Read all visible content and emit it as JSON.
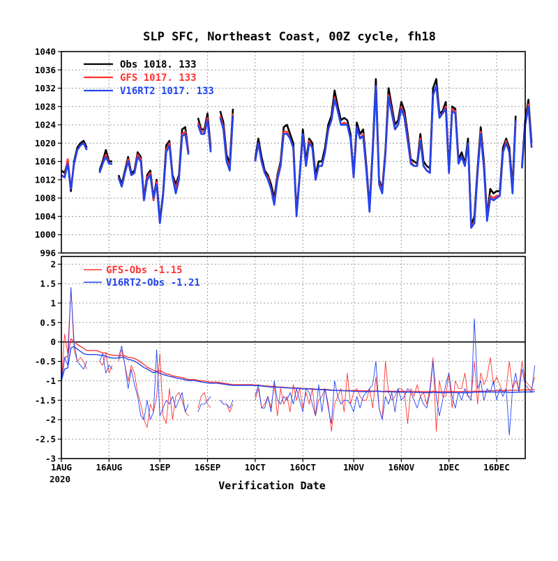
{
  "title": "SLP SFC, Northeast Coast, 00Z cycle, fh18",
  "colors": {
    "obs": "#000000",
    "gfs": "#ff3333",
    "v16": "#2244ee",
    "grid": "#999999"
  },
  "chart_data": [
    {
      "type": "line",
      "panel": "top",
      "ylim": [
        996,
        1040
      ],
      "yticks": [
        "1040",
        "1036",
        "1032",
        "1028",
        "1024",
        "1020",
        "1016",
        "1012",
        "1008",
        "1004",
        "1000",
        "996"
      ],
      "grid": true,
      "legend_position": "top-left",
      "legend": [
        {
          "key": "obs",
          "label": "Obs",
          "mean": "1018.",
          "count": "133"
        },
        {
          "key": "gfs",
          "label": "GFS",
          "mean": "1017.",
          "count": "133"
        },
        {
          "key": "v16",
          "label": "V16RT2",
          "mean": "1017.",
          "count": "133"
        }
      ],
      "x_start": "2020-08-01",
      "series": [
        {
          "name": "Obs",
          "key": "obs",
          "values": [
            1014,
            1013.5,
            1016,
            1009.5,
            1016,
            1019,
            1020,
            1020.5,
            1019,
            null,
            null,
            null,
            1014,
            1016,
            1018.5,
            1016,
            1016,
            null,
            1013,
            1011,
            1014,
            1017,
            1013.5,
            1014,
            1018,
            1017,
            1008,
            1013,
            1014,
            1008,
            1012,
            1003,
            1009,
            1019.5,
            1020.5,
            1013,
            1011,
            1013,
            1023,
            1023.5,
            1018,
            null,
            null,
            1025.5,
            1023,
            1023,
            1026.5,
            1019,
            null,
            null,
            1027,
            1024.5,
            1017.5,
            1015.5,
            1027.5,
            null,
            null,
            null,
            null,
            null,
            null,
            1016.5,
            1021,
            1017,
            1014,
            1013,
            1011,
            1008,
            1013,
            1016,
            1023.5,
            1024,
            1022,
            1020,
            1005,
            1013,
            1023,
            1016,
            1021,
            1020,
            1013,
            1016,
            1016,
            1019,
            1024,
            1026,
            1031.5,
            1028,
            1025,
            1025.5,
            1025,
            1022,
            1013,
            1024.5,
            1022,
            1023,
            1015,
            1006,
            1019,
            1034,
            1012,
            1010,
            1018.5,
            1032,
            1028,
            1024,
            1025,
            1029,
            1027,
            1022,
            1016.5,
            1016,
            1015.5,
            1022,
            1016,
            1015,
            1014.5,
            1032,
            1034,
            1026.5,
            1027,
            1029,
            1014,
            1028,
            1027.5,
            1016.5,
            1018,
            1015.5,
            1021,
            1002,
            1004,
            1014.5,
            1023.5,
            1016,
            1004,
            1010,
            1009,
            1009.5,
            1009.5,
            1019,
            1021,
            1019,
            1010.5,
            1026,
            null,
            1015,
            1025,
            1029.5,
            1020
          ]
        },
        {
          "name": "GFS",
          "key": "gfs",
          "values": [
            1013,
            1012.5,
            1016.5,
            1010,
            1015.5,
            1018.5,
            1019.5,
            1020,
            1018.5,
            null,
            null,
            null,
            1013.5,
            1015.5,
            1017.5,
            1015.5,
            1015.5,
            null,
            1012.5,
            1010.5,
            1013.5,
            1016.5,
            1013,
            1013.5,
            1017.5,
            1016.5,
            1007.5,
            1012.5,
            1013.5,
            1007.5,
            1011.5,
            1002.5,
            1008.5,
            1018.5,
            1020,
            1012.5,
            1010,
            1012.5,
            1022,
            1022.5,
            1018,
            null,
            null,
            1024.5,
            1022.5,
            1022.5,
            1025.5,
            1018.5,
            null,
            null,
            1026,
            1023.5,
            1016.5,
            1014.5,
            1026.5,
            null,
            null,
            null,
            null,
            null,
            null,
            1016,
            1020,
            1016,
            1013.5,
            1012.5,
            1010,
            1007,
            1012.5,
            1015.5,
            1022.5,
            1022.5,
            1021,
            1019,
            1004.5,
            1012.5,
            1022,
            1015,
            1020.5,
            1019,
            1012,
            1015,
            1015,
            1018,
            1023,
            1025,
            1030,
            1027,
            1024,
            1024.5,
            1024,
            1021,
            1012.5,
            1023.5,
            1021,
            1022,
            1014,
            1005.5,
            1018,
            1032.5,
            1011.5,
            1009.5,
            1018,
            1030.5,
            1027,
            1023,
            1024,
            1028,
            1026,
            1021,
            1016,
            1015,
            1015,
            1021,
            1015,
            1014,
            1013.5,
            1030.5,
            1032.5,
            1026,
            1026.5,
            1028,
            1013.5,
            1027.5,
            1027,
            1016,
            1017,
            1015,
            1020,
            1001.5,
            1003,
            1013.5,
            1022.5,
            1015,
            1003.5,
            1008.5,
            1008,
            1008.5,
            1008.5,
            1018,
            1020.5,
            1018,
            1009.5,
            1025,
            null,
            1014.5,
            1024,
            1028.5,
            1019
          ]
        },
        {
          "name": "V16RT2",
          "key": "v16",
          "values": [
            1013,
            1012.5,
            1015.5,
            1010,
            1015.5,
            1018.5,
            1019.5,
            1020,
            1018.5,
            null,
            null,
            null,
            1013.5,
            1015.5,
            1017,
            1015.5,
            1015.5,
            null,
            1012.5,
            1010.5,
            1013.5,
            1016,
            1013,
            1013.5,
            1017,
            1016,
            1007.5,
            1012,
            1013,
            1008,
            1011,
            1002.5,
            1008.5,
            1018,
            1019.5,
            1012.5,
            1009,
            1012,
            1021.5,
            1022,
            1017.5,
            null,
            null,
            1024,
            1022,
            1022,
            1025,
            1018,
            null,
            null,
            1025.5,
            1023,
            1016,
            1014,
            1026,
            null,
            null,
            null,
            null,
            null,
            null,
            1016,
            1020,
            1016,
            1013.5,
            1012,
            1010,
            1006.5,
            1012,
            1015,
            1022,
            1022,
            1021,
            1019,
            1004,
            1012.5,
            1022,
            1015,
            1020,
            1019,
            1012,
            1015,
            1015,
            1018,
            1023,
            1025,
            1029.5,
            1027,
            1024,
            1024,
            1024,
            1021,
            1012.5,
            1023.5,
            1021,
            1021.5,
            1014,
            1005,
            1018,
            1032.5,
            1011,
            1009,
            1017.5,
            1030,
            1026.5,
            1023,
            1024,
            1027.5,
            1025.5,
            1020.5,
            1015.5,
            1015,
            1015,
            1020.5,
            1015,
            1014,
            1013.5,
            1030.5,
            1032.5,
            1025.5,
            1026.5,
            1027.5,
            1013.5,
            1027,
            1026.5,
            1015.5,
            1017,
            1015,
            1020,
            1001.5,
            1002.5,
            1013.5,
            1022,
            1014.5,
            1003,
            1008,
            1007.5,
            1008,
            1008.5,
            1018,
            1020,
            1018,
            1009,
            1025,
            null,
            1014.5,
            1024,
            1028,
            1019
          ]
        }
      ]
    },
    {
      "type": "line",
      "panel": "bottom",
      "ylim": [
        -3,
        2.2
      ],
      "yticks": [
        "2",
        "1.5",
        "1",
        "0.5",
        "0",
        "-0.5",
        "-1",
        "-1.5",
        "-2",
        "-2.5",
        "-3"
      ],
      "grid": true,
      "legend_position": "top-left",
      "legend": [
        {
          "key": "gfs",
          "label": "GFS-Obs",
          "mean": "-1.15"
        },
        {
          "key": "v16",
          "label": "V16RT2-Obs",
          "mean": "-1.21"
        }
      ],
      "x_start": "2020-08-01",
      "series": [
        {
          "name": "GFS-Obs",
          "key": "gfs",
          "values": [
            -1,
            0.2,
            -0.3,
            1.4,
            -0.2,
            -0.5,
            -0.4,
            -0.5,
            -0.7,
            null,
            null,
            null,
            -0.5,
            -0.6,
            -0.3,
            -0.8,
            -0.6,
            null,
            -0.5,
            -0.2,
            -0.6,
            -1,
            -0.6,
            -0.8,
            -1.3,
            -1.6,
            -2,
            -2.2,
            -1.6,
            -1.8,
            -1.4,
            -0.3,
            -1.9,
            -2.1,
            -1.2,
            -2,
            -1.4,
            -1.3,
            -1.5,
            -1.8,
            -1.9,
            null,
            null,
            -1.7,
            -1.4,
            -1.3,
            -1.6,
            -1.7,
            null,
            null,
            -1.5,
            -1.6,
            -1.6,
            -1.8,
            -1.6,
            null,
            null,
            null,
            null,
            null,
            null,
            -1.5,
            -1.2,
            -1.7,
            -1.6,
            -1.4,
            -1.7,
            -1.1,
            -1.9,
            -1.2,
            -1.6,
            -1.4,
            -1.8,
            -1.1,
            -1.5,
            -1.2,
            -1.7,
            -1.3,
            -1.6,
            -1.2,
            -1.9,
            -1.5,
            -1.4,
            -1.2,
            -1.6,
            -2.3,
            -1.6,
            -1.4,
            -1.2,
            -1.8,
            -0.8,
            -1.6,
            -1.3,
            -1.2,
            -1.4,
            -1.5,
            -1.5,
            -1.2,
            -1.7,
            -0.9,
            -1.7,
            -2,
            -0.5,
            -1.3,
            -1.5,
            -1.4,
            -1.2,
            -1.2,
            -1.3,
            -2.1,
            -1.2,
            -1.4,
            -1.1,
            -1.4,
            -1.3,
            -1.6,
            -1.2,
            -0.4,
            -2.3,
            -1,
            -1.4,
            -1.4,
            -0.8,
            -1.7,
            -1,
            -1.2,
            -1.2,
            -0.8,
            -1.4,
            -1.4,
            -0.5,
            -1.6,
            -0.8,
            -1.1,
            -0.9,
            -0.4,
            -1.1,
            -0.9,
            -1.1,
            -1.3,
            -1.2,
            -0.5,
            -1.2,
            -1,
            -1.2,
            -0.5,
            -1,
            -1.1,
            -1.2,
            -0.9
          ]
        },
        {
          "name": "V16RT2-Obs",
          "key": "v16",
          "values": [
            -1,
            -0.4,
            -0.6,
            1.4,
            0,
            -0.5,
            -0.6,
            -0.7,
            -0.5,
            null,
            null,
            null,
            -0.5,
            -0.3,
            -0.8,
            -0.6,
            -0.7,
            null,
            -0.4,
            -0.1,
            -0.6,
            -1.2,
            -0.7,
            -1.1,
            -1.4,
            -1.9,
            -2,
            -1.5,
            -2,
            -1.8,
            -0.2,
            -1.9,
            -1.7,
            -1.5,
            -1.6,
            -1.4,
            -1.7,
            -1.5,
            -1.3,
            -1.8,
            -1.6,
            null,
            null,
            -1.8,
            -1.6,
            -1.6,
            -1.5,
            -1.4,
            null,
            null,
            -1.5,
            -1.6,
            -1.6,
            -1.7,
            -1.5,
            null,
            null,
            null,
            null,
            null,
            null,
            -1.4,
            -1.1,
            -1.7,
            -1.7,
            -1.4,
            -1.8,
            -1,
            -1.5,
            -1.6,
            -1.4,
            -1.5,
            -1.3,
            -1.6,
            -1.2,
            -1.5,
            -1.8,
            -1.2,
            -1.3,
            -1.6,
            -1.9,
            -1.1,
            -1.8,
            -1.2,
            -1.7,
            -2.1,
            -1,
            -1.4,
            -1.6,
            -1.5,
            -1.5,
            -1.6,
            -1.8,
            -1.4,
            -1.7,
            -1.4,
            -1.3,
            -1.2,
            -1.1,
            -0.5,
            -1.7,
            -2,
            -1.4,
            -1.6,
            -1.3,
            -1.8,
            -1.2,
            -1.5,
            -1.4,
            -1.2,
            -1.3,
            -1.5,
            -1.7,
            -1.4,
            -1.6,
            -1.7,
            -1.3,
            -0.5,
            -1.4,
            -1.9,
            -1.5,
            -1.1,
            -0.8,
            -1.4,
            -1.7,
            -1.3,
            -1.5,
            -1.2,
            -1.4,
            -1.5,
            0.6,
            -1.2,
            -1,
            -1.5,
            -1.2,
            -1.3,
            -1,
            -1.5,
            -1.2,
            -1.4,
            -1.2,
            -2.4,
            -1.2,
            -0.8,
            -1.3,
            -0.7,
            -1.1,
            -1.2,
            -1.3,
            -0.6
          ]
        }
      ]
    }
  ],
  "xaxis": {
    "ticks": [
      {
        "label": "1AUG",
        "day": 0
      },
      {
        "label": "16AUG",
        "day": 15
      },
      {
        "label": "1SEP",
        "day": 31
      },
      {
        "label": "16SEP",
        "day": 46
      },
      {
        "label": "1OCT",
        "day": 61
      },
      {
        "label": "16OCT",
        "day": 76
      },
      {
        "label": "1NOV",
        "day": 92
      },
      {
        "label": "16NOV",
        "day": 107
      },
      {
        "label": "1DEC",
        "day": 122
      },
      {
        "label": "16DEC",
        "day": 137
      }
    ],
    "year_label": "2020",
    "xlabel": "Verification Date",
    "range_days": [
      0,
      146
    ]
  }
}
